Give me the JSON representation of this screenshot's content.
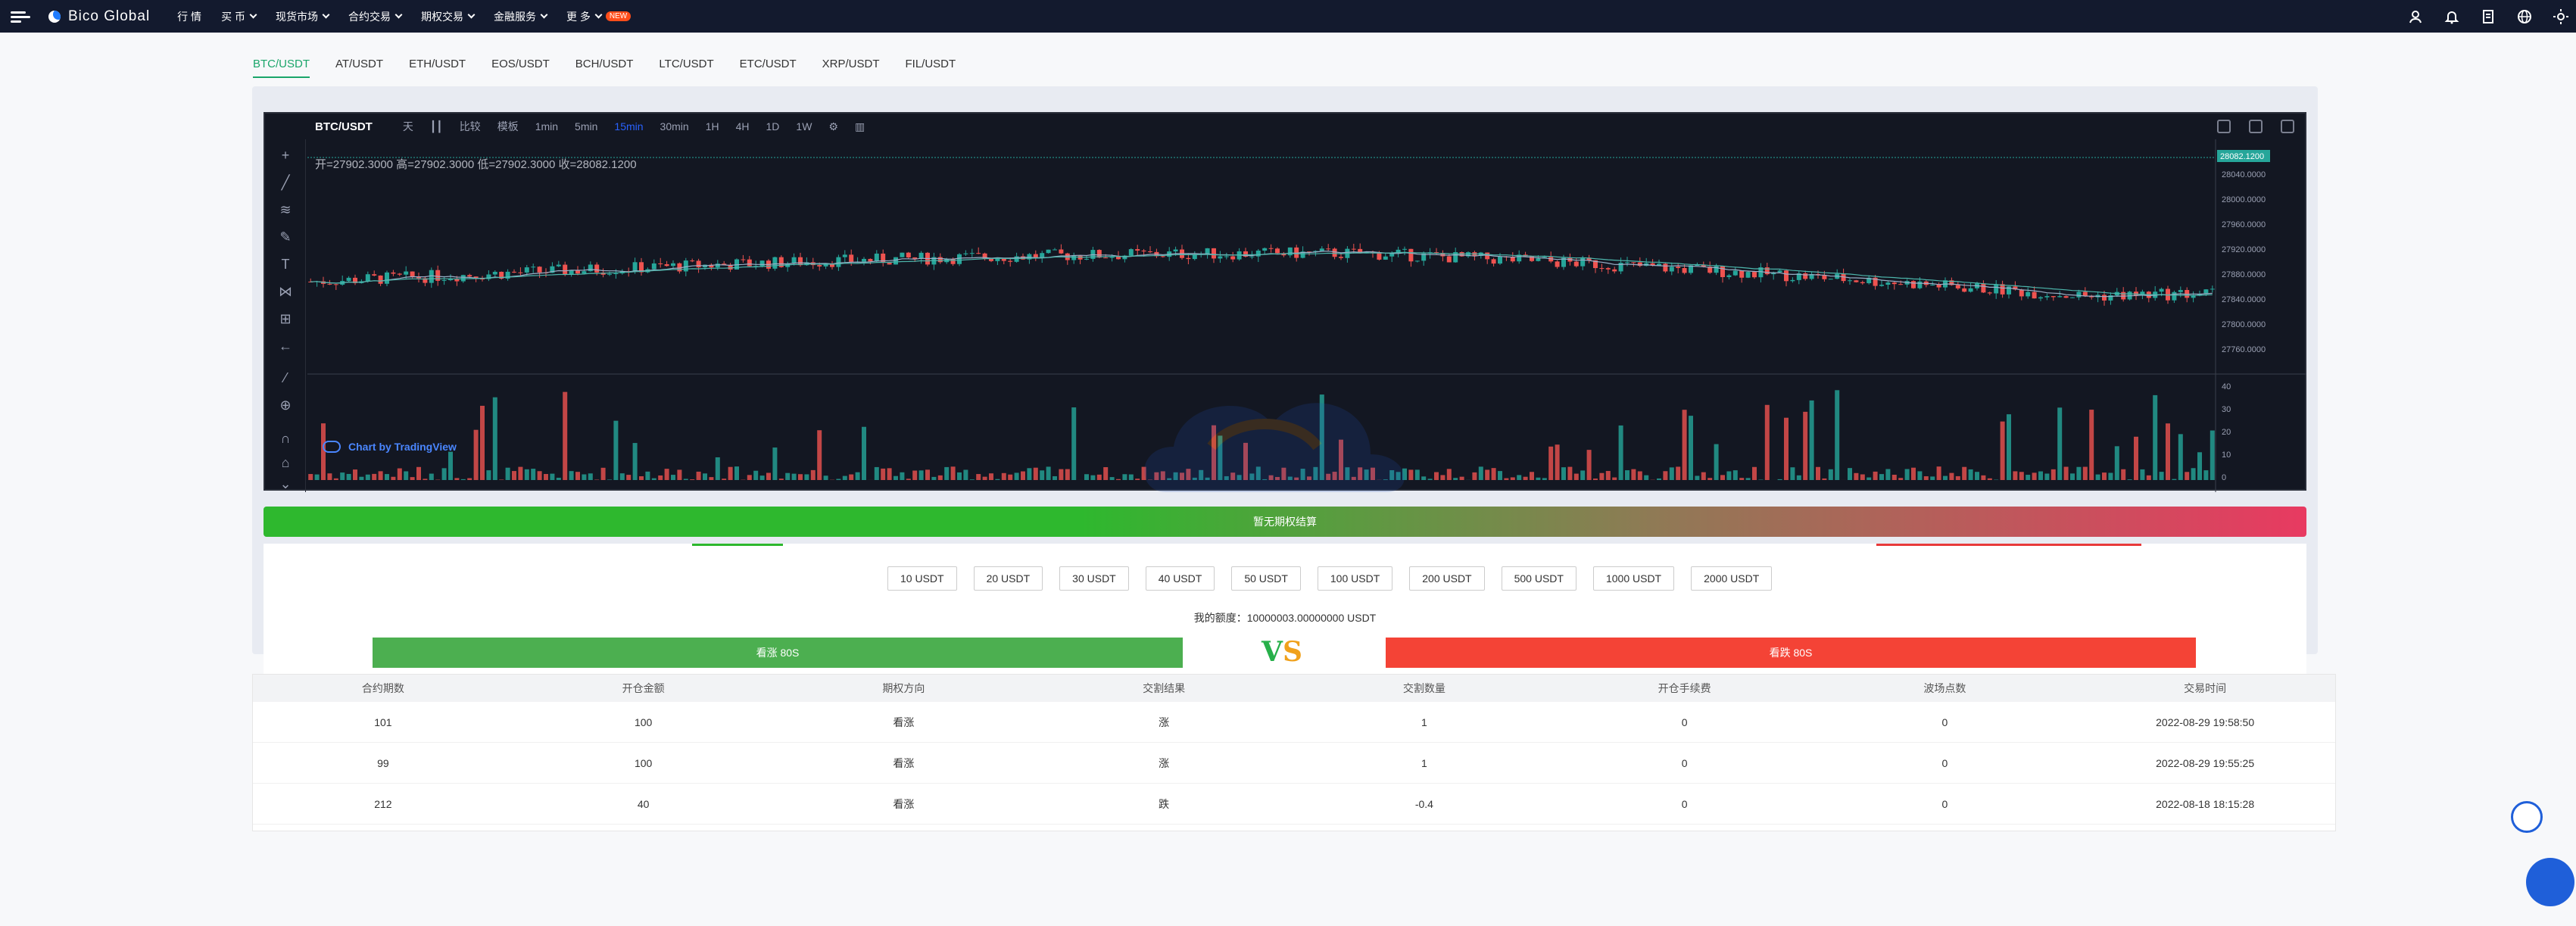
{
  "header": {
    "brand": "Bico Global",
    "nav": [
      {
        "label": "行 情",
        "dropdown": false
      },
      {
        "label": "买 币",
        "dropdown": true
      },
      {
        "label": "现货市场",
        "dropdown": true
      },
      {
        "label": "合约交易",
        "dropdown": true
      },
      {
        "label": "期权交易",
        "dropdown": true
      },
      {
        "label": "金融服务",
        "dropdown": true
      },
      {
        "label": "更 多",
        "dropdown": true,
        "badge": "NEW"
      }
    ],
    "right_icons": [
      "user-icon",
      "bell-icon",
      "document-icon",
      "globe-icon",
      "sun-icon"
    ]
  },
  "pair_tabs": [
    "BTC/USDT",
    "AT/USDT",
    "ETH/USDT",
    "EOS/USDT",
    "BCH/USDT",
    "LTC/USDT",
    "ETC/USDT",
    "XRP/USDT",
    "FIL/USDT"
  ],
  "active_pair": 0,
  "chart": {
    "symbol": "BTC/USDT",
    "toolbar": [
      "天",
      "比较",
      "模板",
      "1min",
      "5min",
      "15min",
      "30min",
      "1H",
      "4H",
      "1D",
      "1W"
    ],
    "active_interval": "15min",
    "legend": "开=27902.3000  高=27902.3000  低=27902.3000  收=28082.1200",
    "last_price": "28082.1200",
    "price_ticks": [
      "28040.0000",
      "28000.0000",
      "27960.0000",
      "27920.0000",
      "27880.0000",
      "27840.0000",
      "27800.0000",
      "27760.0000"
    ],
    "volume_ticks": [
      "40",
      "30",
      "20",
      "10",
      "0"
    ],
    "credit": "Chart by TradingView"
  },
  "progress_text": "暂无期权结算",
  "amounts": [
    "10 USDT",
    "20 USDT",
    "30 USDT",
    "40 USDT",
    "50 USDT",
    "100 USDT",
    "200 USDT",
    "500 USDT",
    "1000 USDT",
    "2000 USDT"
  ],
  "quota_label": "我的额度：",
  "quota_value": "10000003.00000000 USDT",
  "buy_label": "看涨 80S",
  "sell_label": "看跌 80S",
  "vs": {
    "v": "V",
    "s": "S"
  },
  "table": {
    "headers": [
      "合约期数",
      "开仓金额",
      "期权方向",
      "交割结果",
      "交割数量",
      "开仓手续费",
      "波场点数",
      "交易时间"
    ],
    "rows": [
      [
        "101",
        "100",
        "看涨",
        "涨",
        "1",
        "0",
        "0",
        "2022-08-29 19:58:50"
      ],
      [
        "99",
        "100",
        "看涨",
        "涨",
        "1",
        "0",
        "0",
        "2022-08-29 19:55:25"
      ],
      [
        "212",
        "40",
        "看涨",
        "跌",
        "-0.4",
        "0",
        "0",
        "2022-08-18 18:15:28"
      ]
    ]
  },
  "colors": {
    "header_bg": "#131a2e",
    "up": "#26a69a",
    "down": "#ef5350",
    "accent": "#1aa56a"
  }
}
